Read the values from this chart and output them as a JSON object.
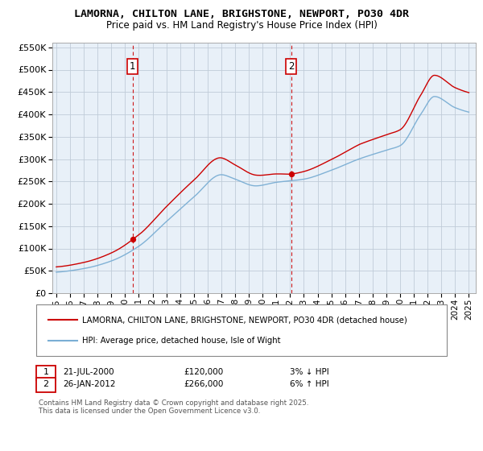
{
  "title": "LAMORNA, CHILTON LANE, BRIGHSTONE, NEWPORT, PO30 4DR",
  "subtitle": "Price paid vs. HM Land Registry's House Price Index (HPI)",
  "hpi_label": "HPI: Average price, detached house, Isle of Wight",
  "property_label": "LAMORNA, CHILTON LANE, BRIGHSTONE, NEWPORT, PO30 4DR (detached house)",
  "footnote": "Contains HM Land Registry data © Crown copyright and database right 2025.\nThis data is licensed under the Open Government Licence v3.0.",
  "annotation1": {
    "num": "1",
    "date": "21-JUL-2000",
    "price": "£120,000",
    "pct": "3% ↓ HPI"
  },
  "annotation2": {
    "num": "2",
    "date": "26-JAN-2012",
    "price": "£266,000",
    "pct": "6% ↑ HPI"
  },
  "sale1_year": 2000.55,
  "sale1_price": 120000,
  "sale2_year": 2012.07,
  "sale2_price": 266000,
  "hpi_color": "#7aaed4",
  "property_color": "#cc0000",
  "vline_color": "#cc0000",
  "bg_color": "#ffffff",
  "chart_bg": "#e8f0f8",
  "grid_color": "#c0ccd8",
  "ylim": [
    0,
    560000
  ],
  "xlim": [
    1994.7,
    2025.5
  ]
}
